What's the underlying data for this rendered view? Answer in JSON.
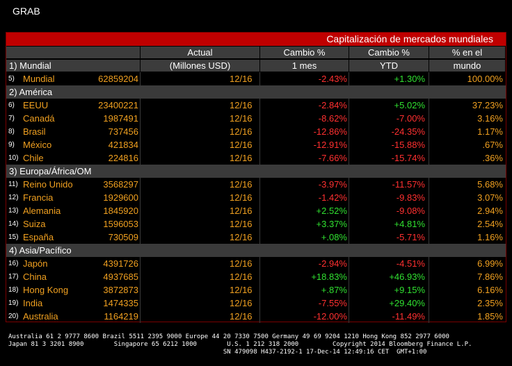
{
  "window": {
    "title": "GRAB"
  },
  "banner": "Capitalización de mercados mundiales",
  "header1": {
    "col_actual": "Actual",
    "col_cambio1": "Cambio %",
    "col_cambio2": "Cambio %",
    "col_pct": "% en el"
  },
  "header2": {
    "section": "1) Mundial",
    "col_actual": "(Millones USD)",
    "col_cambio1": "1 mes",
    "col_cambio2": "YTD",
    "col_pct": "mundo"
  },
  "sections": [
    {
      "label": "",
      "rows": [
        {
          "idx": "5)",
          "name": "Mundial",
          "value": "62859204",
          "date": "12/16",
          "m1": "-2.43%",
          "ytd": "+1.30%",
          "share": "100.00%"
        }
      ]
    },
    {
      "label": "2) América",
      "rows": [
        {
          "idx": "6)",
          "name": "EEUU",
          "value": "23400221",
          "date": "12/16",
          "m1": "-2.84%",
          "ytd": "+5.02%",
          "share": "37.23%"
        },
        {
          "idx": "7)",
          "name": "Canadá",
          "value": "1987491",
          "date": "12/16",
          "m1": "-8.62%",
          "ytd": "-7.00%",
          "share": "3.16%"
        },
        {
          "idx": "8)",
          "name": "Brasil",
          "value": "737456",
          "date": "12/16",
          "m1": "-12.86%",
          "ytd": "-24.35%",
          "share": "1.17%"
        },
        {
          "idx": "9)",
          "name": "México",
          "value": "421834",
          "date": "12/16",
          "m1": "-12.91%",
          "ytd": "-15.88%",
          "share": ".67%"
        },
        {
          "idx": "10)",
          "name": "Chile",
          "value": "224816",
          "date": "12/16",
          "m1": "-7.66%",
          "ytd": "-15.74%",
          "share": ".36%"
        }
      ]
    },
    {
      "label": "3) Europa/África/OM",
      "rows": [
        {
          "idx": "11)",
          "name": "Reino Unido",
          "value": "3568297",
          "date": "12/16",
          "m1": "-3.97%",
          "ytd": "-11.57%",
          "share": "5.68%"
        },
        {
          "idx": "12)",
          "name": "Francia",
          "value": "1929600",
          "date": "12/16",
          "m1": "-1.42%",
          "ytd": "-9.83%",
          "share": "3.07%"
        },
        {
          "idx": "13)",
          "name": "Alemania",
          "value": "1845920",
          "date": "12/16",
          "m1": "+2.52%",
          "ytd": "-9.08%",
          "share": "2.94%"
        },
        {
          "idx": "14)",
          "name": "Suiza",
          "value": "1596053",
          "date": "12/16",
          "m1": "+3.37%",
          "ytd": "+4.81%",
          "share": "2.54%"
        },
        {
          "idx": "15)",
          "name": "España",
          "value": "730509",
          "date": "12/16",
          "m1": "+.08%",
          "ytd": "-5.71%",
          "share": "1.16%"
        }
      ]
    },
    {
      "label": "4) Asia/Pacífico",
      "rows": [
        {
          "idx": "16)",
          "name": "Japón",
          "value": "4391726",
          "date": "12/16",
          "m1": "-2.94%",
          "ytd": "-4.51%",
          "share": "6.99%"
        },
        {
          "idx": "17)",
          "name": "China",
          "value": "4937685",
          "date": "12/16",
          "m1": "+18.83%",
          "ytd": "+46.93%",
          "share": "7.86%"
        },
        {
          "idx": "18)",
          "name": "Hong Kong",
          "value": "3872873",
          "date": "12/16",
          "m1": "+.87%",
          "ytd": "+9.15%",
          "share": "6.16%"
        },
        {
          "idx": "19)",
          "name": "India",
          "value": "1474335",
          "date": "12/16",
          "m1": "-7.55%",
          "ytd": "+29.40%",
          "share": "2.35%"
        },
        {
          "idx": "20)",
          "name": "Australia",
          "value": "1164219",
          "date": "12/16",
          "m1": "-12.00%",
          "ytd": "-11.49%",
          "share": "1.85%"
        }
      ]
    }
  ],
  "footer": {
    "line1": "Australia 61 2 9777 8600 Brazil 5511 2395 9000 Europe 44 20 7330 7500 Germany 49 69 9204 1210 Hong Kong 852 2977 6000",
    "line2": "Japan 81 3 3201 8900        Singapore 65 6212 1000        U.S. 1 212 318 2000         Copyright 2014 Bloomberg Finance L.P.",
    "line3": "                                                         SN 479098 H437-2192-1 17-Dec-14 12:49:16 CET  GMT+1:00"
  },
  "colors": {
    "positive": "#30e030",
    "negative": "#ff3030",
    "accent": "#f0a020",
    "banner": "#c00000"
  }
}
